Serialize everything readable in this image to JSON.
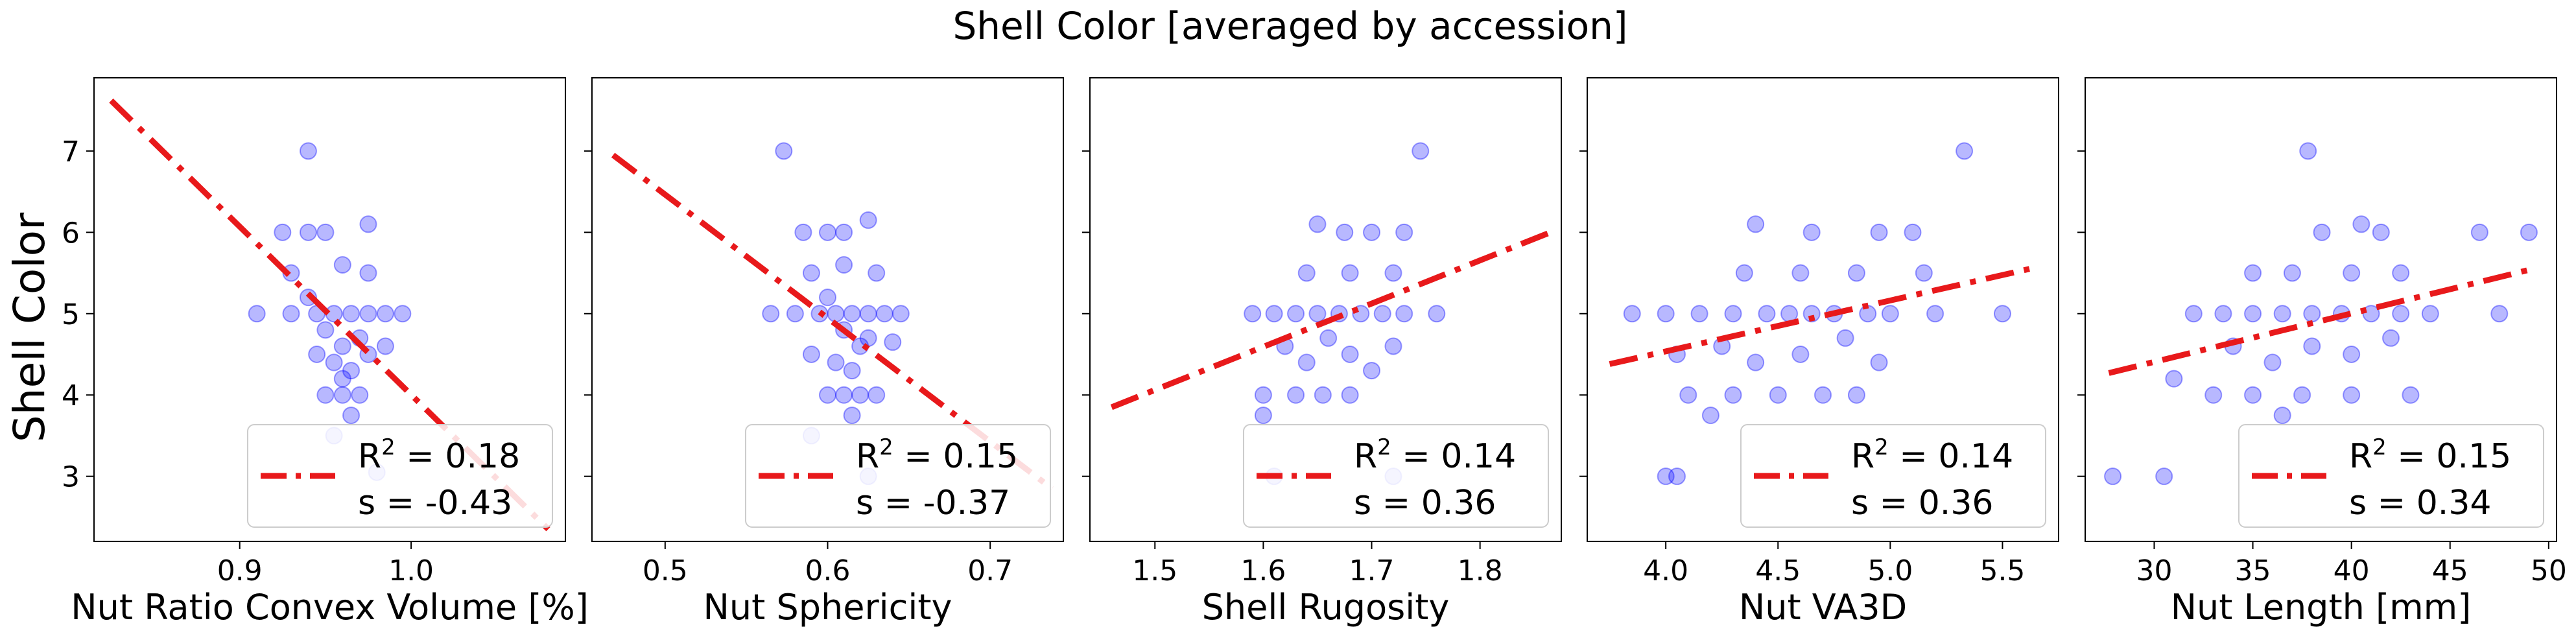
{
  "figure": {
    "title": "Shell Color [averaged by accession]",
    "ylabel": "Shell Color",
    "yticks": [
      3,
      4,
      5,
      6,
      7
    ],
    "ylim": [
      2.2,
      7.9
    ]
  },
  "style": {
    "point_color": "#0000ff",
    "point_opacity": 0.28,
    "fit_color": "#e8191b"
  },
  "chart_data": [
    {
      "type": "scatter",
      "xlabel": "Nut Ratio Convex Volume [%]",
      "xlim": [
        0.815,
        1.09
      ],
      "xticks": [
        {
          "v": 0.9,
          "label": "0.9"
        },
        {
          "v": 1.0,
          "label": "1.0"
        }
      ],
      "fit": {
        "x": [
          0.825,
          1.08
        ],
        "y": [
          7.62,
          2.35
        ]
      },
      "legend": {
        "r2": "0.18",
        "s": "-0.43"
      },
      "points": [
        [
          0.94,
          7.0
        ],
        [
          0.925,
          6.0
        ],
        [
          0.94,
          6.0
        ],
        [
          0.95,
          6.0
        ],
        [
          0.975,
          6.1
        ],
        [
          0.93,
          5.5
        ],
        [
          0.96,
          5.6
        ],
        [
          0.975,
          5.5
        ],
        [
          0.91,
          5.0
        ],
        [
          0.93,
          5.0
        ],
        [
          0.945,
          5.0
        ],
        [
          0.955,
          5.0
        ],
        [
          0.965,
          5.0
        ],
        [
          0.975,
          5.0
        ],
        [
          0.985,
          5.0
        ],
        [
          0.995,
          5.0
        ],
        [
          0.94,
          5.2
        ],
        [
          0.95,
          4.8
        ],
        [
          0.96,
          4.6
        ],
        [
          0.97,
          4.7
        ],
        [
          0.955,
          4.4
        ],
        [
          0.965,
          4.3
        ],
        [
          0.975,
          4.5
        ],
        [
          0.985,
          4.6
        ],
        [
          0.945,
          4.5
        ],
        [
          0.96,
          4.2
        ],
        [
          0.95,
          4.0
        ],
        [
          0.96,
          4.0
        ],
        [
          0.97,
          4.0
        ],
        [
          0.965,
          3.75
        ],
        [
          0.955,
          3.5
        ],
        [
          0.98,
          3.05
        ]
      ]
    },
    {
      "type": "scatter",
      "xlabel": "Nut Sphericity",
      "xlim": [
        0.455,
        0.745
      ],
      "xticks": [
        {
          "v": 0.5,
          "label": "0.5"
        },
        {
          "v": 0.6,
          "label": "0.6"
        },
        {
          "v": 0.7,
          "label": "0.7"
        }
      ],
      "fit": {
        "x": [
          0.468,
          0.738
        ],
        "y": [
          6.95,
          2.85
        ]
      },
      "legend": {
        "r2": "0.15",
        "s": "-0.37"
      },
      "points": [
        [
          0.573,
          7.0
        ],
        [
          0.585,
          6.0
        ],
        [
          0.6,
          6.0
        ],
        [
          0.61,
          6.0
        ],
        [
          0.625,
          6.15
        ],
        [
          0.59,
          5.5
        ],
        [
          0.61,
          5.6
        ],
        [
          0.63,
          5.5
        ],
        [
          0.565,
          5.0
        ],
        [
          0.58,
          5.0
        ],
        [
          0.595,
          5.0
        ],
        [
          0.605,
          5.0
        ],
        [
          0.615,
          5.0
        ],
        [
          0.625,
          5.0
        ],
        [
          0.635,
          5.0
        ],
        [
          0.645,
          5.0
        ],
        [
          0.6,
          5.2
        ],
        [
          0.61,
          4.8
        ],
        [
          0.62,
          4.6
        ],
        [
          0.625,
          4.7
        ],
        [
          0.605,
          4.4
        ],
        [
          0.615,
          4.3
        ],
        [
          0.64,
          4.65
        ],
        [
          0.59,
          4.5
        ],
        [
          0.6,
          4.0
        ],
        [
          0.61,
          4.0
        ],
        [
          0.62,
          4.0
        ],
        [
          0.63,
          4.0
        ],
        [
          0.615,
          3.75
        ],
        [
          0.59,
          3.5
        ],
        [
          0.625,
          3.0
        ]
      ]
    },
    {
      "type": "scatter",
      "xlabel": "Shell Rugosity",
      "xlim": [
        1.44,
        1.875
      ],
      "xticks": [
        {
          "v": 1.5,
          "label": "1.5"
        },
        {
          "v": 1.6,
          "label": "1.6"
        },
        {
          "v": 1.7,
          "label": "1.7"
        },
        {
          "v": 1.8,
          "label": "1.8"
        }
      ],
      "fit": {
        "x": [
          1.46,
          1.865
        ],
        "y": [
          3.85,
          6.0
        ]
      },
      "legend": {
        "r2": "0.14",
        "s": "0.36"
      },
      "points": [
        [
          1.745,
          7.0
        ],
        [
          1.65,
          6.1
        ],
        [
          1.675,
          6.0
        ],
        [
          1.7,
          6.0
        ],
        [
          1.73,
          6.0
        ],
        [
          1.64,
          5.5
        ],
        [
          1.68,
          5.5
        ],
        [
          1.72,
          5.5
        ],
        [
          1.59,
          5.0
        ],
        [
          1.61,
          5.0
        ],
        [
          1.63,
          5.0
        ],
        [
          1.65,
          5.0
        ],
        [
          1.67,
          5.0
        ],
        [
          1.69,
          5.0
        ],
        [
          1.71,
          5.0
        ],
        [
          1.73,
          5.0
        ],
        [
          1.76,
          5.0
        ],
        [
          1.62,
          4.6
        ],
        [
          1.64,
          4.4
        ],
        [
          1.66,
          4.7
        ],
        [
          1.68,
          4.5
        ],
        [
          1.7,
          4.3
        ],
        [
          1.72,
          4.6
        ],
        [
          1.6,
          4.0
        ],
        [
          1.63,
          4.0
        ],
        [
          1.655,
          4.0
        ],
        [
          1.68,
          4.0
        ],
        [
          1.6,
          3.75
        ],
        [
          1.61,
          3.0
        ],
        [
          1.72,
          3.0
        ]
      ]
    },
    {
      "type": "scatter",
      "xlabel": "Nut VA3D",
      "xlim": [
        3.65,
        5.75
      ],
      "xticks": [
        {
          "v": 4.0,
          "label": "4.0"
        },
        {
          "v": 4.5,
          "label": "4.5"
        },
        {
          "v": 5.0,
          "label": "5.0"
        },
        {
          "v": 5.5,
          "label": "5.5"
        }
      ],
      "fit": {
        "x": [
          3.75,
          5.62
        ],
        "y": [
          4.38,
          5.55
        ]
      },
      "legend": {
        "r2": "0.14",
        "s": "0.36"
      },
      "points": [
        [
          5.33,
          7.0
        ],
        [
          4.4,
          6.1
        ],
        [
          4.65,
          6.0
        ],
        [
          4.95,
          6.0
        ],
        [
          5.1,
          6.0
        ],
        [
          4.35,
          5.5
        ],
        [
          4.6,
          5.5
        ],
        [
          4.85,
          5.5
        ],
        [
          5.15,
          5.5
        ],
        [
          3.85,
          5.0
        ],
        [
          4.0,
          5.0
        ],
        [
          4.15,
          5.0
        ],
        [
          4.3,
          5.0
        ],
        [
          4.45,
          5.0
        ],
        [
          4.55,
          5.0
        ],
        [
          4.65,
          5.0
        ],
        [
          4.75,
          5.0
        ],
        [
          4.9,
          5.0
        ],
        [
          5.0,
          5.0
        ],
        [
          5.2,
          5.0
        ],
        [
          5.5,
          5.0
        ],
        [
          4.05,
          4.5
        ],
        [
          4.25,
          4.6
        ],
        [
          4.4,
          4.4
        ],
        [
          4.6,
          4.5
        ],
        [
          4.8,
          4.7
        ],
        [
          4.95,
          4.4
        ],
        [
          4.1,
          4.0
        ],
        [
          4.3,
          4.0
        ],
        [
          4.5,
          4.0
        ],
        [
          4.7,
          4.0
        ],
        [
          4.85,
          4.0
        ],
        [
          4.2,
          3.75
        ],
        [
          4.0,
          3.0
        ],
        [
          4.05,
          3.0
        ]
      ]
    },
    {
      "type": "scatter",
      "xlabel": "Nut Length [mm]",
      "xlim": [
        26.5,
        50.4
      ],
      "xticks": [
        {
          "v": 30,
          "label": "30"
        },
        {
          "v": 35,
          "label": "35"
        },
        {
          "v": 40,
          "label": "40"
        },
        {
          "v": 45,
          "label": "45"
        },
        {
          "v": 50,
          "label": "50"
        }
      ],
      "fit": {
        "x": [
          27.7,
          49.2
        ],
        "y": [
          4.27,
          5.55
        ]
      },
      "legend": {
        "r2": "0.15",
        "s": "0.34"
      },
      "points": [
        [
          37.8,
          7.0
        ],
        [
          40.5,
          6.1
        ],
        [
          38.5,
          6.0
        ],
        [
          41.5,
          6.0
        ],
        [
          46.5,
          6.0
        ],
        [
          49.0,
          6.0
        ],
        [
          35.0,
          5.5
        ],
        [
          37.0,
          5.5
        ],
        [
          40.0,
          5.5
        ],
        [
          42.5,
          5.5
        ],
        [
          32.0,
          5.0
        ],
        [
          33.5,
          5.0
        ],
        [
          35.0,
          5.0
        ],
        [
          36.5,
          5.0
        ],
        [
          38.0,
          5.0
        ],
        [
          39.5,
          5.0
        ],
        [
          41.0,
          5.0
        ],
        [
          42.5,
          5.0
        ],
        [
          44.0,
          5.0
        ],
        [
          47.5,
          5.0
        ],
        [
          34.0,
          4.6
        ],
        [
          36.0,
          4.4
        ],
        [
          38.0,
          4.6
        ],
        [
          40.0,
          4.5
        ],
        [
          42.0,
          4.7
        ],
        [
          31.0,
          4.2
        ],
        [
          33.0,
          4.0
        ],
        [
          35.0,
          4.0
        ],
        [
          37.5,
          4.0
        ],
        [
          40.0,
          4.0
        ],
        [
          43.0,
          4.0
        ],
        [
          36.5,
          3.75
        ],
        [
          27.9,
          3.0
        ],
        [
          30.5,
          3.0
        ]
      ]
    }
  ]
}
